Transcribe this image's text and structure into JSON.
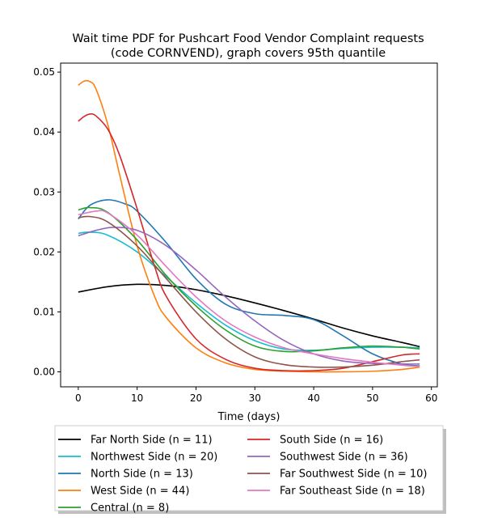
{
  "chart_data": {
    "type": "line",
    "title_line1": "Wait time PDF for Pushcart Food Vendor Complaint  requests",
    "title_line2": "(code CORNVEND), graph covers 95th quantile",
    "xlabel": "Time (days)",
    "ylabel": "",
    "xlim": [
      -3,
      61
    ],
    "ylim": [
      -0.0025,
      0.0515
    ],
    "x_ticks": [
      0,
      10,
      20,
      30,
      40,
      50,
      60
    ],
    "y_ticks": [
      0.0,
      0.01,
      0.02,
      0.03,
      0.04,
      0.05
    ],
    "y_tick_labels": [
      "0.00",
      "0.01",
      "0.02",
      "0.03",
      "0.04",
      "0.05"
    ],
    "grid": false,
    "legend_position": "below plot, two columns",
    "series": [
      {
        "name": "Far North Side (n = 11)",
        "color": "#000000",
        "x": [
          0,
          5,
          10,
          15,
          20,
          25,
          30,
          35,
          40,
          45,
          50,
          55,
          58
        ],
        "y": [
          0.0133,
          0.0142,
          0.0146,
          0.0144,
          0.0137,
          0.0127,
          0.0115,
          0.0102,
          0.0088,
          0.0073,
          0.006,
          0.0049,
          0.0042
        ]
      },
      {
        "name": "Northwest Side (n = 20)",
        "color": "#17becf",
        "x": [
          0,
          2,
          5,
          10,
          15,
          20,
          25,
          30,
          35,
          40,
          45,
          50,
          55,
          58
        ],
        "y": [
          0.0231,
          0.0233,
          0.0228,
          0.02,
          0.0158,
          0.0115,
          0.0078,
          0.0052,
          0.0038,
          0.0036,
          0.0039,
          0.0041,
          0.0041,
          0.004
        ]
      },
      {
        "name": "North Side (n = 13)",
        "color": "#1f77b4",
        "x": [
          0,
          2,
          5,
          8,
          10,
          15,
          20,
          25,
          30,
          35,
          40,
          45,
          50,
          55,
          58
        ],
        "y": [
          0.0255,
          0.0278,
          0.0287,
          0.028,
          0.0268,
          0.0215,
          0.0155,
          0.0113,
          0.0097,
          0.0094,
          0.0087,
          0.006,
          0.003,
          0.0013,
          0.001
        ]
      },
      {
        "name": "West Side (n = 44)",
        "color": "#ff7f0e",
        "x": [
          0,
          1,
          2,
          3,
          5,
          7,
          10,
          13,
          15,
          20,
          25,
          30,
          35,
          40,
          45,
          50,
          55,
          58
        ],
        "y": [
          0.0478,
          0.0485,
          0.0484,
          0.0472,
          0.0413,
          0.033,
          0.021,
          0.0125,
          0.009,
          0.004,
          0.0015,
          0.0004,
          0.0001,
          0.0,
          0.0,
          0.0001,
          0.0004,
          0.0008
        ]
      },
      {
        "name": "Central (n = 8)",
        "color": "#2ca02c",
        "x": [
          0,
          2,
          5,
          10,
          15,
          20,
          25,
          30,
          35,
          40,
          45,
          50,
          55,
          58
        ],
        "y": [
          0.027,
          0.0274,
          0.0266,
          0.022,
          0.016,
          0.011,
          0.007,
          0.0043,
          0.0034,
          0.0035,
          0.004,
          0.0043,
          0.0041,
          0.0038
        ]
      },
      {
        "name": "South Side (n = 16)",
        "color": "#d62728",
        "x": [
          0,
          1,
          2,
          3,
          5,
          7,
          10,
          13,
          15,
          20,
          25,
          30,
          35,
          40,
          45,
          50,
          55,
          58
        ],
        "y": [
          0.0418,
          0.0426,
          0.043,
          0.0427,
          0.0405,
          0.0362,
          0.0272,
          0.0175,
          0.0125,
          0.0055,
          0.0021,
          0.0006,
          0.0002,
          0.0002,
          0.0006,
          0.0017,
          0.0028,
          0.003
        ]
      },
      {
        "name": "Southwest Side (n = 36)",
        "color": "#9467bd",
        "x": [
          0,
          3,
          6,
          10,
          15,
          20,
          25,
          30,
          35,
          40,
          45,
          50,
          55,
          58
        ],
        "y": [
          0.0227,
          0.0236,
          0.0241,
          0.0236,
          0.021,
          0.017,
          0.0125,
          0.0085,
          0.0052,
          0.003,
          0.0018,
          0.0014,
          0.0013,
          0.0013
        ]
      },
      {
        "name": "Far Southwest Side (n = 10)",
        "color": "#8c564b",
        "x": [
          0,
          2,
          5,
          10,
          15,
          20,
          25,
          30,
          35,
          40,
          45,
          50,
          55,
          58
        ],
        "y": [
          0.0257,
          0.0259,
          0.025,
          0.021,
          0.0155,
          0.01,
          0.0055,
          0.0025,
          0.0012,
          0.0008,
          0.0008,
          0.0011,
          0.0017,
          0.002
        ]
      },
      {
        "name": "Far Southeast Side (n = 18)",
        "color": "#e377c2",
        "x": [
          0,
          3,
          5,
          10,
          15,
          20,
          25,
          30,
          35,
          40,
          45,
          50,
          55,
          58
        ],
        "y": [
          0.0262,
          0.0268,
          0.0265,
          0.0228,
          0.0175,
          0.0125,
          0.0085,
          0.0058,
          0.004,
          0.003,
          0.0022,
          0.0016,
          0.0011,
          0.0009
        ]
      }
    ]
  }
}
